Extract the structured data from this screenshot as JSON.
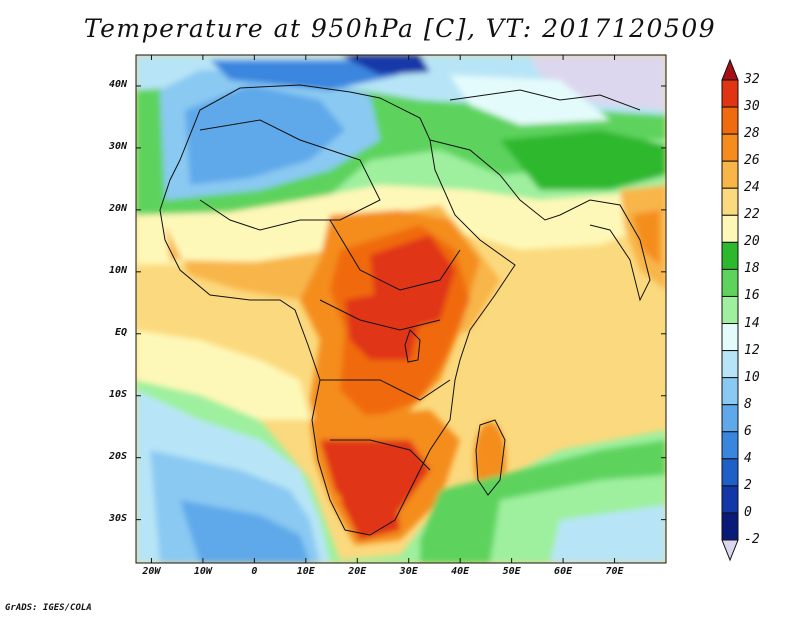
{
  "title": "Temperature at 950hPa [C], VT: 2017120509",
  "credit": "GrADS: IGES/COLA",
  "map": {
    "lon_range": [
      -23,
      80
    ],
    "lat_range": [
      -37,
      45
    ],
    "lat_ticks": [
      {
        "value": 40,
        "label": "40N"
      },
      {
        "value": 30,
        "label": "30N"
      },
      {
        "value": 20,
        "label": "20N"
      },
      {
        "value": 10,
        "label": "10N"
      },
      {
        "value": 0,
        "label": "EQ"
      },
      {
        "value": -10,
        "label": "10S"
      },
      {
        "value": -20,
        "label": "20S"
      },
      {
        "value": -30,
        "label": "30S"
      }
    ],
    "lon_ticks": [
      {
        "value": -20,
        "label": "20W"
      },
      {
        "value": -10,
        "label": "10W"
      },
      {
        "value": 0,
        "label": "0"
      },
      {
        "value": 10,
        "label": "10E"
      },
      {
        "value": 20,
        "label": "20E"
      },
      {
        "value": 30,
        "label": "30E"
      },
      {
        "value": 40,
        "label": "40E"
      },
      {
        "value": 50,
        "label": "50E"
      },
      {
        "value": 60,
        "label": "60E"
      },
      {
        "value": 70,
        "label": "70E"
      }
    ]
  },
  "colorbar": {
    "labels": [
      "32",
      "30",
      "28",
      "26",
      "24",
      "22",
      "20",
      "18",
      "16",
      "14",
      "12",
      "10",
      "8",
      "6",
      "4",
      "2",
      "0",
      "-2"
    ],
    "colors": [
      "#a50f15",
      "#e03412",
      "#f06a10",
      "#f48d1e",
      "#f8b548",
      "#fbd97e",
      "#fef8b8",
      "#2eb82e",
      "#5dd35d",
      "#9ef09e",
      "#e4fbfb",
      "#b7e5f7",
      "#8ac9f2",
      "#5fa9ea",
      "#3a86de",
      "#1f5fc8",
      "#1237a8",
      "#0a1a78",
      "#dcd7ee"
    ]
  }
}
